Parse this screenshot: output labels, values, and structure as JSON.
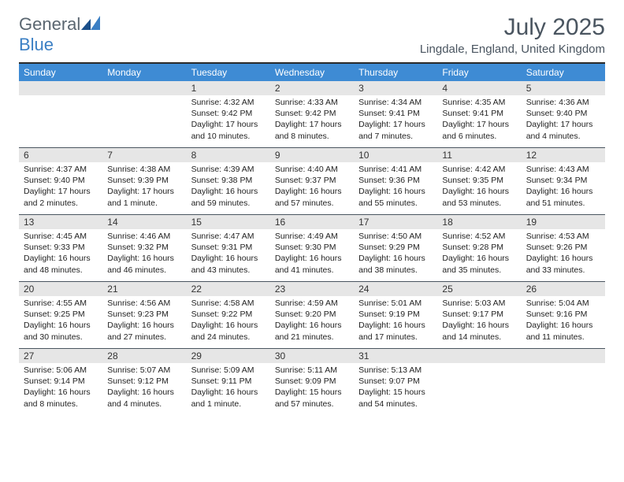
{
  "brand": {
    "name_part1": "General",
    "name_part2": "Blue"
  },
  "title": {
    "month_year": "July 2025",
    "location": "Lingdale, England, United Kingdom"
  },
  "style": {
    "header_bar_color": "#3e8bd4",
    "header_text_color": "#ffffff",
    "daynum_bg": "#e6e6e6",
    "border_color": "#4a5560",
    "body_text_color": "#222222",
    "title_color": "#4a5560",
    "logo_gray": "#5a6670",
    "logo_blue": "#3b7fc4",
    "font_size_body": 10.5,
    "font_size_weekday": 12,
    "font_size_title": 30,
    "font_size_location": 15
  },
  "weekdays": [
    "Sunday",
    "Monday",
    "Tuesday",
    "Wednesday",
    "Thursday",
    "Friday",
    "Saturday"
  ],
  "weeks": [
    [
      {
        "num": "",
        "sunrise": "",
        "sunset": "",
        "daylight": ""
      },
      {
        "num": "",
        "sunrise": "",
        "sunset": "",
        "daylight": ""
      },
      {
        "num": "1",
        "sunrise": "Sunrise: 4:32 AM",
        "sunset": "Sunset: 9:42 PM",
        "daylight": "Daylight: 17 hours and 10 minutes."
      },
      {
        "num": "2",
        "sunrise": "Sunrise: 4:33 AM",
        "sunset": "Sunset: 9:42 PM",
        "daylight": "Daylight: 17 hours and 8 minutes."
      },
      {
        "num": "3",
        "sunrise": "Sunrise: 4:34 AM",
        "sunset": "Sunset: 9:41 PM",
        "daylight": "Daylight: 17 hours and 7 minutes."
      },
      {
        "num": "4",
        "sunrise": "Sunrise: 4:35 AM",
        "sunset": "Sunset: 9:41 PM",
        "daylight": "Daylight: 17 hours and 6 minutes."
      },
      {
        "num": "5",
        "sunrise": "Sunrise: 4:36 AM",
        "sunset": "Sunset: 9:40 PM",
        "daylight": "Daylight: 17 hours and 4 minutes."
      }
    ],
    [
      {
        "num": "6",
        "sunrise": "Sunrise: 4:37 AM",
        "sunset": "Sunset: 9:40 PM",
        "daylight": "Daylight: 17 hours and 2 minutes."
      },
      {
        "num": "7",
        "sunrise": "Sunrise: 4:38 AM",
        "sunset": "Sunset: 9:39 PM",
        "daylight": "Daylight: 17 hours and 1 minute."
      },
      {
        "num": "8",
        "sunrise": "Sunrise: 4:39 AM",
        "sunset": "Sunset: 9:38 PM",
        "daylight": "Daylight: 16 hours and 59 minutes."
      },
      {
        "num": "9",
        "sunrise": "Sunrise: 4:40 AM",
        "sunset": "Sunset: 9:37 PM",
        "daylight": "Daylight: 16 hours and 57 minutes."
      },
      {
        "num": "10",
        "sunrise": "Sunrise: 4:41 AM",
        "sunset": "Sunset: 9:36 PM",
        "daylight": "Daylight: 16 hours and 55 minutes."
      },
      {
        "num": "11",
        "sunrise": "Sunrise: 4:42 AM",
        "sunset": "Sunset: 9:35 PM",
        "daylight": "Daylight: 16 hours and 53 minutes."
      },
      {
        "num": "12",
        "sunrise": "Sunrise: 4:43 AM",
        "sunset": "Sunset: 9:34 PM",
        "daylight": "Daylight: 16 hours and 51 minutes."
      }
    ],
    [
      {
        "num": "13",
        "sunrise": "Sunrise: 4:45 AM",
        "sunset": "Sunset: 9:33 PM",
        "daylight": "Daylight: 16 hours and 48 minutes."
      },
      {
        "num": "14",
        "sunrise": "Sunrise: 4:46 AM",
        "sunset": "Sunset: 9:32 PM",
        "daylight": "Daylight: 16 hours and 46 minutes."
      },
      {
        "num": "15",
        "sunrise": "Sunrise: 4:47 AM",
        "sunset": "Sunset: 9:31 PM",
        "daylight": "Daylight: 16 hours and 43 minutes."
      },
      {
        "num": "16",
        "sunrise": "Sunrise: 4:49 AM",
        "sunset": "Sunset: 9:30 PM",
        "daylight": "Daylight: 16 hours and 41 minutes."
      },
      {
        "num": "17",
        "sunrise": "Sunrise: 4:50 AM",
        "sunset": "Sunset: 9:29 PM",
        "daylight": "Daylight: 16 hours and 38 minutes."
      },
      {
        "num": "18",
        "sunrise": "Sunrise: 4:52 AM",
        "sunset": "Sunset: 9:28 PM",
        "daylight": "Daylight: 16 hours and 35 minutes."
      },
      {
        "num": "19",
        "sunrise": "Sunrise: 4:53 AM",
        "sunset": "Sunset: 9:26 PM",
        "daylight": "Daylight: 16 hours and 33 minutes."
      }
    ],
    [
      {
        "num": "20",
        "sunrise": "Sunrise: 4:55 AM",
        "sunset": "Sunset: 9:25 PM",
        "daylight": "Daylight: 16 hours and 30 minutes."
      },
      {
        "num": "21",
        "sunrise": "Sunrise: 4:56 AM",
        "sunset": "Sunset: 9:23 PM",
        "daylight": "Daylight: 16 hours and 27 minutes."
      },
      {
        "num": "22",
        "sunrise": "Sunrise: 4:58 AM",
        "sunset": "Sunset: 9:22 PM",
        "daylight": "Daylight: 16 hours and 24 minutes."
      },
      {
        "num": "23",
        "sunrise": "Sunrise: 4:59 AM",
        "sunset": "Sunset: 9:20 PM",
        "daylight": "Daylight: 16 hours and 21 minutes."
      },
      {
        "num": "24",
        "sunrise": "Sunrise: 5:01 AM",
        "sunset": "Sunset: 9:19 PM",
        "daylight": "Daylight: 16 hours and 17 minutes."
      },
      {
        "num": "25",
        "sunrise": "Sunrise: 5:03 AM",
        "sunset": "Sunset: 9:17 PM",
        "daylight": "Daylight: 16 hours and 14 minutes."
      },
      {
        "num": "26",
        "sunrise": "Sunrise: 5:04 AM",
        "sunset": "Sunset: 9:16 PM",
        "daylight": "Daylight: 16 hours and 11 minutes."
      }
    ],
    [
      {
        "num": "27",
        "sunrise": "Sunrise: 5:06 AM",
        "sunset": "Sunset: 9:14 PM",
        "daylight": "Daylight: 16 hours and 8 minutes."
      },
      {
        "num": "28",
        "sunrise": "Sunrise: 5:07 AM",
        "sunset": "Sunset: 9:12 PM",
        "daylight": "Daylight: 16 hours and 4 minutes."
      },
      {
        "num": "29",
        "sunrise": "Sunrise: 5:09 AM",
        "sunset": "Sunset: 9:11 PM",
        "daylight": "Daylight: 16 hours and 1 minute."
      },
      {
        "num": "30",
        "sunrise": "Sunrise: 5:11 AM",
        "sunset": "Sunset: 9:09 PM",
        "daylight": "Daylight: 15 hours and 57 minutes."
      },
      {
        "num": "31",
        "sunrise": "Sunrise: 5:13 AM",
        "sunset": "Sunset: 9:07 PM",
        "daylight": "Daylight: 15 hours and 54 minutes."
      },
      {
        "num": "",
        "sunrise": "",
        "sunset": "",
        "daylight": ""
      },
      {
        "num": "",
        "sunrise": "",
        "sunset": "",
        "daylight": ""
      }
    ]
  ]
}
